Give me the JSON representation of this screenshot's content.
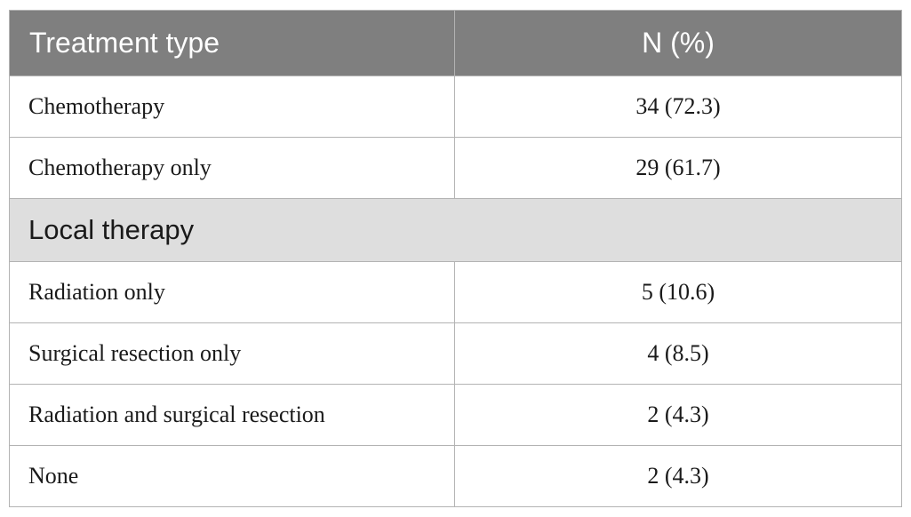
{
  "header": {
    "col1": "Treatment type",
    "col2": "N (%)"
  },
  "rows": [
    {
      "label": "Chemotherapy",
      "value": "34 (72.3)"
    },
    {
      "label": "Chemotherapy only",
      "value": "29 (61.7)"
    }
  ],
  "section": {
    "label": "Local therapy"
  },
  "section_rows": [
    {
      "label": "Radiation only",
      "value": "5 (10.6)"
    },
    {
      "label": "Surgical resection only",
      "value": "4 (8.5)"
    },
    {
      "label": "Radiation and surgical resection",
      "value": "2 (4.3)"
    },
    {
      "label": "None",
      "value": "2 (4.3)"
    }
  ],
  "colors": {
    "header_bg": "#7f7f7f",
    "header_text": "#ffffff",
    "section_bg": "#dedede",
    "border": "#b3b3b3"
  }
}
